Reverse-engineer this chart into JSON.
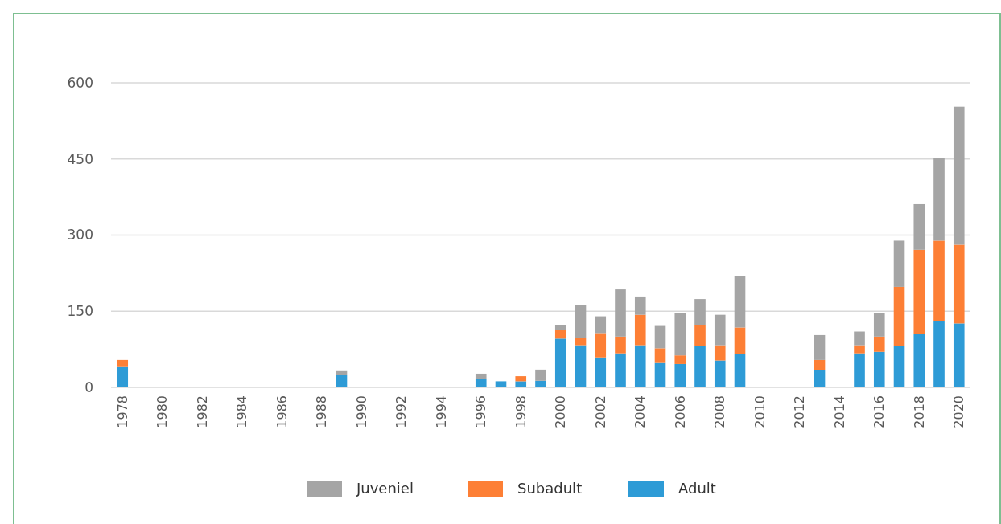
{
  "chart_data": {
    "type": "bar",
    "stacked": true,
    "categories": [
      "1978",
      null,
      "1980",
      null,
      "1982",
      null,
      "1984",
      null,
      "1986",
      null,
      "1988",
      null,
      "1990",
      null,
      "1992",
      null,
      "1994",
      null,
      "1996",
      null,
      "1998",
      null,
      "2000",
      null,
      "2002",
      null,
      "2004",
      null,
      "2006",
      null,
      "2008",
      null,
      "2010",
      null,
      "2012",
      null,
      "2014",
      null,
      "2016",
      null,
      "2018",
      null,
      "2020"
    ],
    "series": [
      {
        "name": "Adult",
        "color": "#2e9bd6",
        "values": [
          40,
          0,
          0,
          0,
          0,
          0,
          0,
          0,
          0,
          0,
          0,
          25,
          0,
          0,
          0,
          0,
          0,
          0,
          17,
          12,
          12,
          13,
          96,
          83,
          59,
          67,
          83,
          48,
          46,
          81,
          53,
          66,
          0,
          0,
          0,
          34,
          0,
          67,
          70,
          81,
          105,
          130,
          126
        ]
      },
      {
        "name": "Subadult",
        "color": "#fd7f35",
        "values": [
          14,
          0,
          0,
          0,
          0,
          0,
          0,
          0,
          0,
          0,
          0,
          0,
          0,
          0,
          0,
          0,
          0,
          0,
          0,
          0,
          10,
          0,
          18,
          15,
          48,
          33,
          60,
          29,
          17,
          41,
          30,
          52,
          0,
          0,
          0,
          20,
          0,
          16,
          30,
          117,
          166,
          159,
          155
        ]
      },
      {
        "name": "Juveniel",
        "color": "#a5a5a5",
        "values": [
          0,
          0,
          0,
          0,
          0,
          0,
          0,
          0,
          0,
          0,
          0,
          7,
          0,
          0,
          0,
          0,
          0,
          0,
          10,
          0,
          0,
          22,
          9,
          64,
          33,
          93,
          36,
          44,
          83,
          52,
          60,
          102,
          0,
          0,
          0,
          49,
          0,
          27,
          47,
          91,
          90,
          163,
          272
        ]
      }
    ],
    "ylim": [
      0,
      600
    ],
    "yticks": [
      0,
      150,
      300,
      450,
      600
    ],
    "grid": "y",
    "legend": "bottom"
  }
}
